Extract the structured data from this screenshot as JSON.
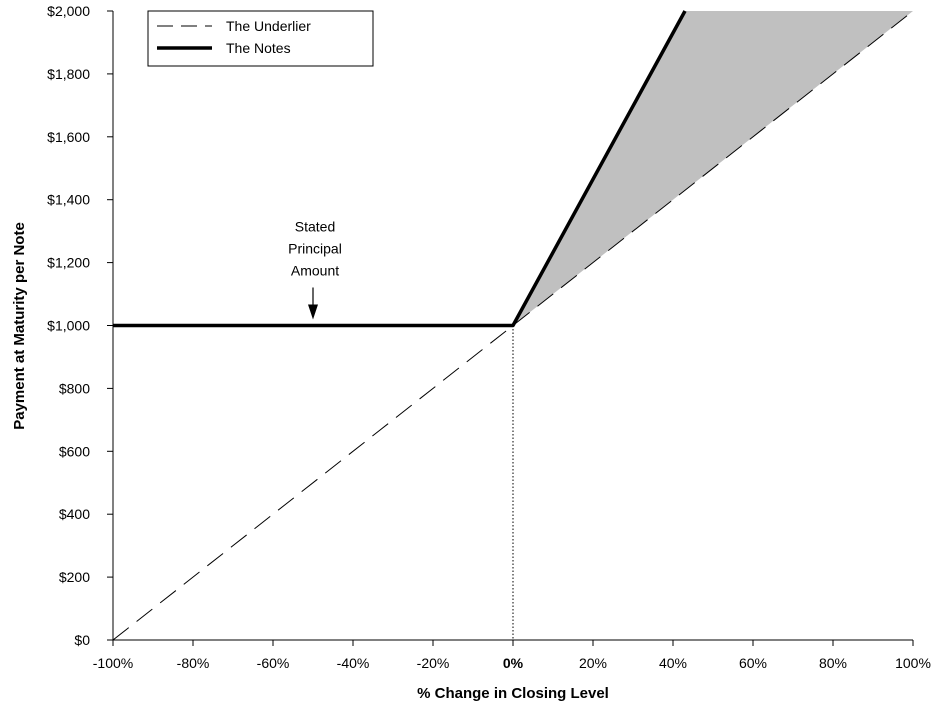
{
  "chart_data": {
    "type": "line",
    "xlabel": "% Change in Closing Level",
    "ylabel": "Payment at Maturity per Note",
    "xlim": [
      -100,
      100
    ],
    "ylim": [
      0,
      2000
    ],
    "x_ticks": [
      -100,
      -80,
      -60,
      -40,
      -20,
      0,
      20,
      40,
      60,
      80,
      100
    ],
    "x_tick_labels": [
      "-100%",
      "-80%",
      "-60%",
      "-40%",
      "-20%",
      "0%",
      "20%",
      "40%",
      "60%",
      "80%",
      "100%"
    ],
    "y_ticks": [
      0,
      200,
      400,
      600,
      800,
      1000,
      1200,
      1400,
      1600,
      1800,
      2000
    ],
    "y_tick_labels": [
      "$0",
      "$200",
      "$400",
      "$600",
      "$800",
      "$1,000",
      "$1,200",
      "$1,400",
      "$1,600",
      "$1,800",
      "$2,000"
    ],
    "series": [
      {
        "name": "The Underlier",
        "style": "dashed",
        "color": "#000000",
        "points": [
          [
            -100,
            0
          ],
          [
            100,
            2000
          ]
        ]
      },
      {
        "name": "The Notes",
        "style": "solid-thick",
        "color": "#000000",
        "points": [
          [
            -100,
            1000
          ],
          [
            0,
            1000
          ],
          [
            43,
            2000
          ]
        ]
      }
    ],
    "shaded_region": {
      "color": "#c0c0c0",
      "points": [
        [
          0,
          1000
        ],
        [
          43,
          2000
        ],
        [
          100,
          2000
        ]
      ]
    },
    "reference_line": {
      "x": 0,
      "style": "dotted"
    },
    "annotation": {
      "lines": [
        "Stated",
        "Principal",
        "Amount"
      ],
      "x": -50,
      "y": 1000
    },
    "legend": {
      "placement": "top-left"
    }
  }
}
